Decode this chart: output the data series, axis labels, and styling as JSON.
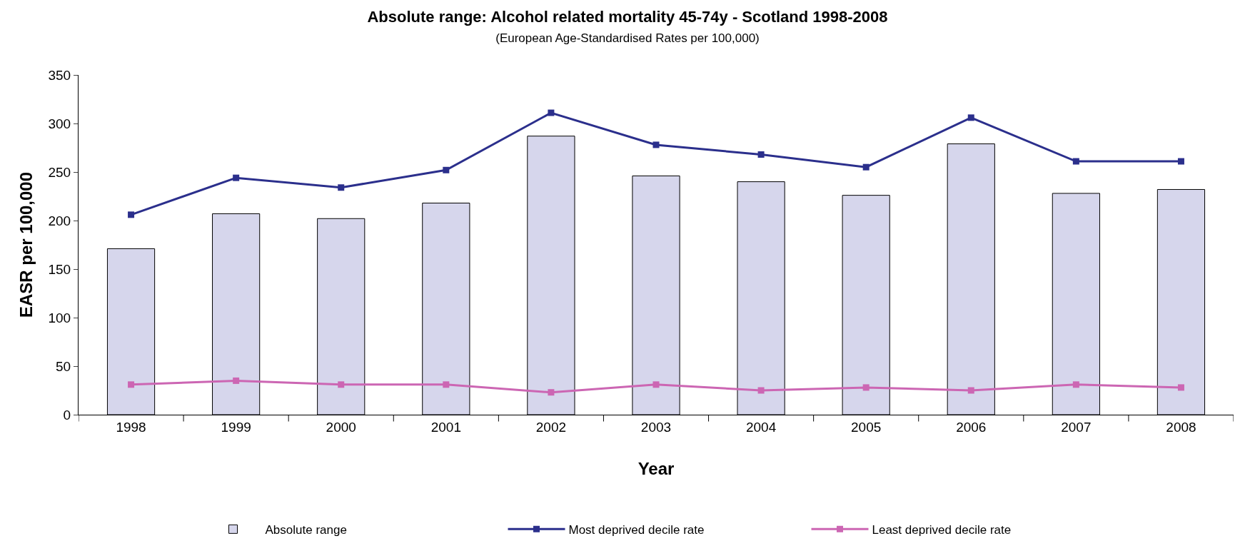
{
  "chart_data": {
    "type": "bar",
    "title": "Absolute range: Alcohol related mortality 45-74y - Scotland 1998-2008",
    "subtitle": "(European Age-Standardised Rates per 100,000)",
    "xlabel": "Year",
    "ylabel": "EASR per 100,000",
    "categories": [
      "1998",
      "1999",
      "2000",
      "2001",
      "2002",
      "2003",
      "2004",
      "2005",
      "2006",
      "2007",
      "2008"
    ],
    "series": [
      {
        "name": "Absolute range",
        "color": "#d6d6ec",
        "values": [
          171,
          207,
          202,
          218,
          287,
          246,
          240,
          226,
          279,
          228,
          232
        ]
      },
      {
        "name": "Most deprived decile rate",
        "type": "line",
        "color": "#2b2f8c",
        "values": [
          206,
          244,
          234,
          252,
          311,
          278,
          268,
          255,
          306,
          261,
          261
        ]
      },
      {
        "name": "Least deprived decile rate",
        "type": "line",
        "color": "#cc66b3",
        "values": [
          31,
          35,
          31,
          31,
          23,
          31,
          25,
          28,
          25,
          31,
          28
        ]
      }
    ],
    "ylim": [
      0,
      350
    ],
    "yticks": [
      0,
      50,
      100,
      150,
      200,
      250,
      300,
      350
    ],
    "grid": false,
    "legend": "bottom",
    "marker": "square",
    "line_style": "solid"
  }
}
